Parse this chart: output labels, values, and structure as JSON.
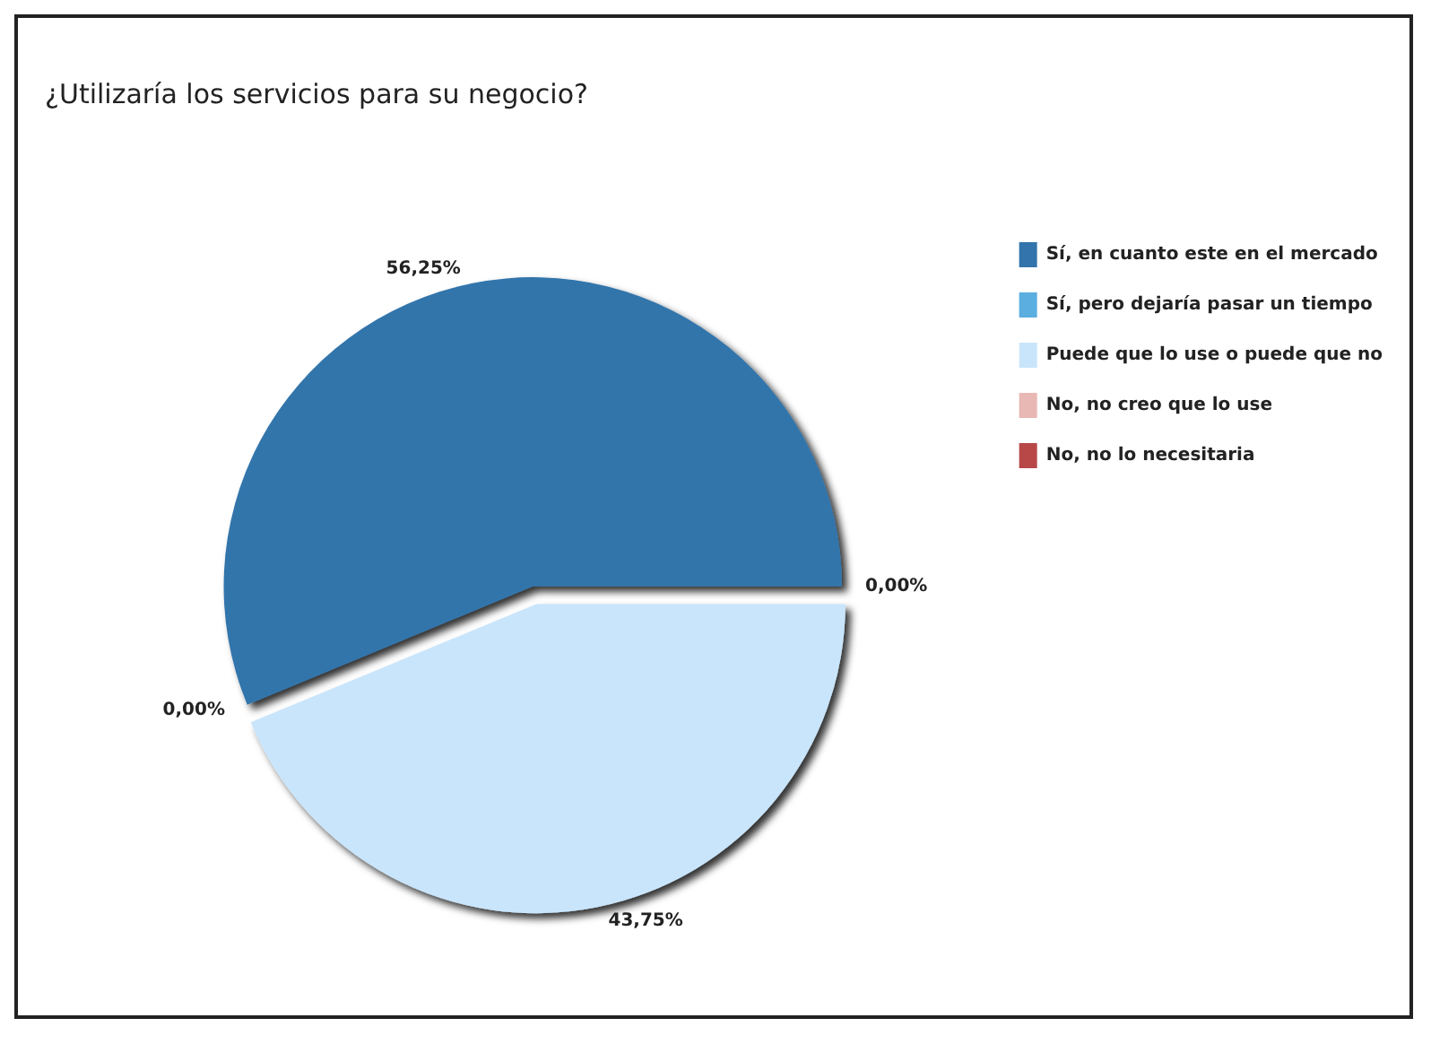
{
  "chart_data": {
    "type": "pie",
    "title": "¿Utilizaría los servicios para su negocio?",
    "categories": [
      "Sí, en cuanto este en el mercado",
      "Sí, pero dejaría pasar un tiempo",
      "Puede que lo use o puede que no",
      "No, no creo que lo use",
      "No, no lo necesitaria"
    ],
    "values": [
      56.25,
      0,
      43.75,
      0,
      0
    ],
    "colors": [
      "#3274ab",
      "#5aaee0",
      "#c9e5fb",
      "#e8b8b4",
      "#b84848"
    ],
    "value_labels": [
      "56,25%",
      "0,00%",
      "43,75%",
      "0,00%",
      null
    ],
    "legend": "right"
  }
}
